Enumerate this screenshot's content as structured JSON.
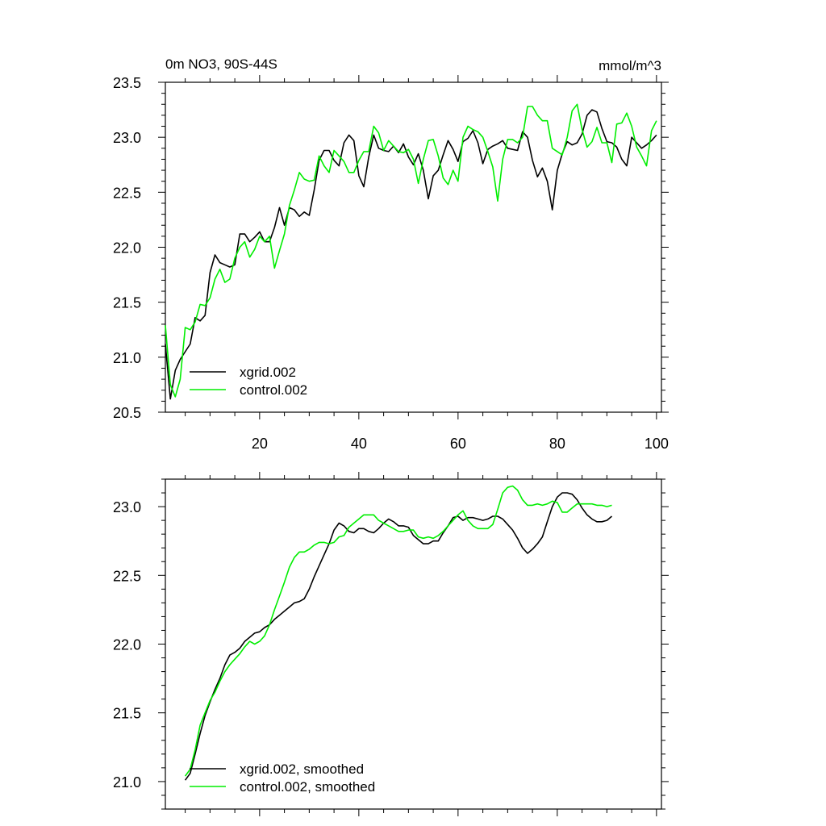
{
  "chart_data": [
    {
      "type": "line",
      "title": "0m NO3, 90S-44S",
      "units": "mmol/m^3",
      "xlim": [
        1,
        101
      ],
      "ylim": [
        20.5,
        23.5
      ],
      "x_ticks": [
        "20",
        "40",
        "60",
        "80",
        "100"
      ],
      "y_ticks": [
        "20.5",
        "21.0",
        "21.5",
        "22.0",
        "22.5",
        "23.0",
        "23.5"
      ],
      "legend_position": "bottom-left",
      "series": [
        {
          "name": "xgrid.002",
          "color": "#000000",
          "x_start": 1,
          "values": [
            21.12,
            20.62,
            20.88,
            20.98,
            21.05,
            21.12,
            21.36,
            21.33,
            21.38,
            21.77,
            21.93,
            21.86,
            21.84,
            21.82,
            21.84,
            22.12,
            22.12,
            22.05,
            22.09,
            22.14,
            22.05,
            22.05,
            22.18,
            22.36,
            22.2,
            22.36,
            22.34,
            22.28,
            22.32,
            22.29,
            22.52,
            22.79,
            22.88,
            22.88,
            22.79,
            22.74,
            22.95,
            23.02,
            22.97,
            22.65,
            22.55,
            22.82,
            23.02,
            22.9,
            22.88,
            22.87,
            22.92,
            22.86,
            22.94,
            22.82,
            22.75,
            22.85,
            22.7,
            22.44,
            22.65,
            22.7,
            22.84,
            22.97,
            22.89,
            22.78,
            22.96,
            22.99,
            23.06,
            22.95,
            22.76,
            22.89,
            22.92,
            22.94,
            22.97,
            22.9,
            22.89,
            22.88,
            23.05,
            23.0,
            22.79,
            22.64,
            22.72,
            22.6,
            22.34,
            22.7,
            22.85,
            22.96,
            22.93,
            22.95,
            23.03,
            23.2,
            23.25,
            23.23,
            23.08,
            22.96,
            22.95,
            22.91,
            22.8,
            22.74,
            23.0,
            22.95,
            22.9,
            22.93,
            22.97,
            23.02
          ]
        },
        {
          "name": "control.002",
          "color": "#00ee00",
          "x_start": 1,
          "values": [
            21.29,
            20.75,
            20.64,
            20.8,
            21.27,
            21.25,
            21.32,
            21.48,
            21.47,
            21.54,
            21.71,
            21.8,
            21.68,
            21.71,
            21.9,
            22.0,
            22.05,
            21.91,
            21.98,
            22.1,
            22.05,
            22.1,
            21.81,
            21.97,
            22.12,
            22.38,
            22.52,
            22.68,
            22.62,
            22.6,
            22.61,
            22.83,
            22.74,
            22.68,
            22.88,
            22.83,
            22.78,
            22.68,
            22.68,
            22.79,
            22.87,
            22.87,
            23.1,
            23.04,
            22.88,
            22.97,
            22.92,
            22.87,
            22.86,
            22.89,
            22.8,
            22.58,
            22.8,
            22.97,
            22.98,
            22.83,
            22.63,
            22.57,
            22.7,
            22.6,
            23.0,
            23.1,
            23.07,
            23.05,
            23.0,
            22.87,
            22.73,
            22.42,
            22.8,
            22.98,
            22.98,
            22.95,
            23.0,
            23.28,
            23.28,
            23.2,
            23.15,
            23.15,
            22.9,
            22.87,
            22.84,
            23.0,
            23.24,
            23.3,
            23.07,
            22.91,
            22.96,
            23.09,
            22.95,
            22.95,
            22.77,
            23.12,
            23.13,
            23.22,
            23.1,
            22.91,
            22.83,
            22.74,
            23.06,
            23.15
          ]
        }
      ]
    },
    {
      "type": "line",
      "xlim": [
        1,
        101
      ],
      "ylim": [
        20.8,
        23.2
      ],
      "y_ticks": [
        "21.0",
        "21.5",
        "22.0",
        "22.5",
        "23.0"
      ],
      "legend_position": "bottom-left",
      "series": [
        {
          "name": "xgrid.002, smoothed",
          "color": "#000000",
          "x_start": 5,
          "values": [
            21.01,
            21.06,
            21.2,
            21.35,
            21.48,
            21.58,
            21.67,
            21.75,
            21.85,
            21.92,
            21.94,
            21.97,
            22.02,
            22.05,
            22.08,
            22.09,
            22.12,
            22.14,
            22.18,
            22.21,
            22.24,
            22.27,
            22.3,
            22.31,
            22.33,
            22.4,
            22.49,
            22.57,
            22.65,
            22.73,
            22.83,
            22.88,
            22.86,
            22.82,
            22.81,
            22.84,
            22.84,
            22.82,
            22.81,
            22.84,
            22.88,
            22.91,
            22.89,
            22.86,
            22.86,
            22.85,
            22.79,
            22.76,
            22.73,
            22.73,
            22.75,
            22.75,
            22.81,
            22.86,
            22.92,
            22.93,
            22.9,
            22.92,
            22.92,
            22.91,
            22.9,
            22.91,
            22.93,
            22.93,
            22.91,
            22.87,
            22.83,
            22.77,
            22.7,
            22.66,
            22.69,
            22.73,
            22.78,
            22.89,
            23.0,
            23.07,
            23.1,
            23.1,
            23.09,
            23.05,
            22.99,
            22.94,
            22.91,
            22.89,
            22.89,
            22.9,
            22.93
          ]
        },
        {
          "name": "control.002, smoothed",
          "color": "#00ee00",
          "x_start": 5,
          "values": [
            21.04,
            21.09,
            21.23,
            21.41,
            21.5,
            21.59,
            21.65,
            21.73,
            21.8,
            21.85,
            21.89,
            21.93,
            21.98,
            22.02,
            22.0,
            22.02,
            22.06,
            22.14,
            22.25,
            22.35,
            22.45,
            22.56,
            22.63,
            22.67,
            22.67,
            22.69,
            22.72,
            22.74,
            22.74,
            22.73,
            22.74,
            22.78,
            22.79,
            22.85,
            22.88,
            22.91,
            22.94,
            22.94,
            22.94,
            22.9,
            22.88,
            22.86,
            22.84,
            22.82,
            22.82,
            22.83,
            22.83,
            22.78,
            22.77,
            22.78,
            22.77,
            22.79,
            22.82,
            22.86,
            22.9,
            22.94,
            22.97,
            22.9,
            22.86,
            22.84,
            22.84,
            22.84,
            22.87,
            22.98,
            23.1,
            23.14,
            23.15,
            23.12,
            23.05,
            23.01,
            23.01,
            23.02,
            23.01,
            23.02,
            23.04,
            23.03,
            22.96,
            22.96,
            22.99,
            23.02,
            23.02,
            23.02,
            23.02,
            23.01,
            23.01,
            23.0,
            23.01
          ]
        }
      ]
    }
  ]
}
